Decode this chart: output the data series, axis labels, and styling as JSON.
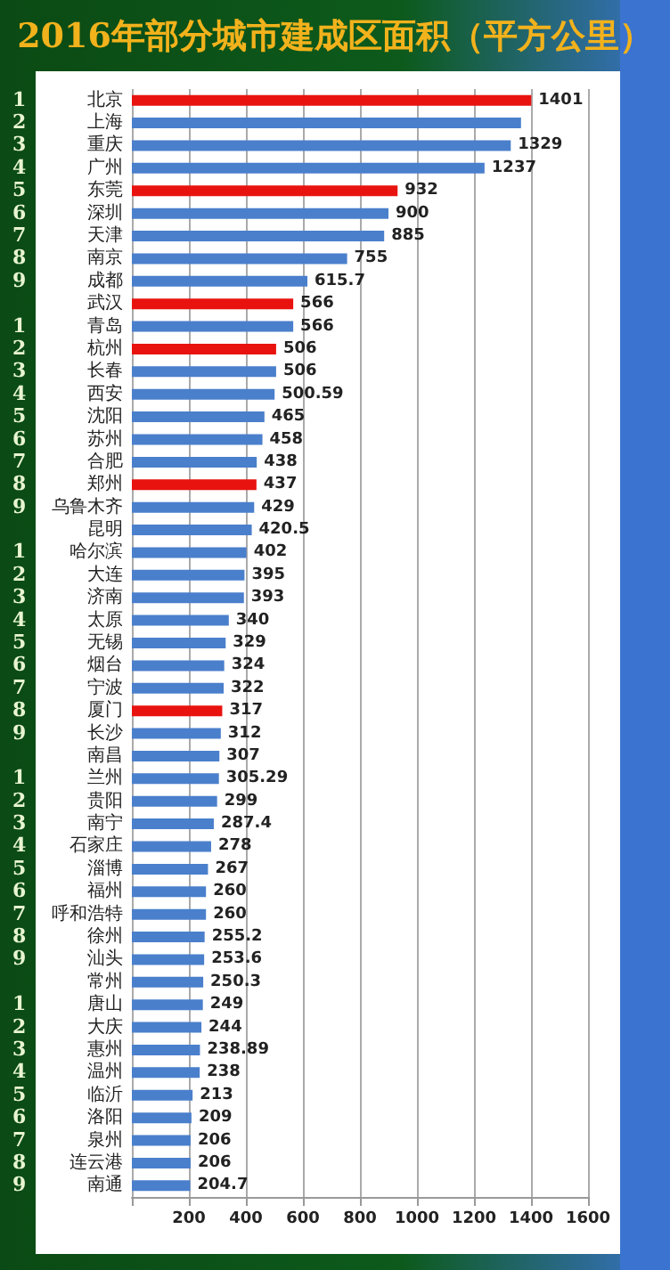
{
  "chart_data": {
    "type": "bar",
    "orientation": "horizontal",
    "title": "2016年部分城市建成区面积（平方公里）",
    "categories": [
      "北京",
      "上海",
      "重庆",
      "广州",
      "东莞",
      "深圳",
      "天津",
      "南京",
      "成都",
      "武汉",
      "青岛",
      "杭州",
      "长春",
      "西安",
      "沈阳",
      "苏州",
      "合肥",
      "郑州",
      "乌鲁木齐",
      "昆明",
      "哈尔滨",
      "大连",
      "济南",
      "太原",
      "无锡",
      "烟台",
      "宁波",
      "厦门",
      "长沙",
      "南昌",
      "兰州",
      "贵阳",
      "南宁",
      "石家庄",
      "淄博",
      "福州",
      "呼和浩特",
      "徐州",
      "汕头",
      "常州",
      "唐山",
      "大庆",
      "惠州",
      "温州",
      "临沂",
      "洛阳",
      "泉州",
      "连云港",
      "南通"
    ],
    "values": [
      1401,
      1365,
      1329,
      1237,
      932,
      900,
      885,
      755,
      615.7,
      566,
      566,
      506,
      506,
      500.59,
      465,
      458,
      438,
      437,
      429,
      420.5,
      402,
      395,
      393,
      340,
      329,
      324,
      322,
      317,
      312,
      307,
      305.29,
      299,
      287.4,
      278,
      267,
      260,
      260,
      255.2,
      253.6,
      250.3,
      249,
      244,
      238.89,
      238,
      213,
      209,
      206,
      206,
      204.7
    ],
    "colors": [
      "#e8130f",
      "#4a7fcc",
      "#4a7fcc",
      "#4a7fcc",
      "#e8130f",
      "#4a7fcc",
      "#4a7fcc",
      "#4a7fcc",
      "#4a7fcc",
      "#e8130f",
      "#4a7fcc",
      "#e8130f",
      "#4a7fcc",
      "#4a7fcc",
      "#4a7fcc",
      "#4a7fcc",
      "#4a7fcc",
      "#e8130f",
      "#4a7fcc",
      "#4a7fcc",
      "#4a7fcc",
      "#4a7fcc",
      "#4a7fcc",
      "#4a7fcc",
      "#4a7fcc",
      "#4a7fcc",
      "#4a7fcc",
      "#e8130f",
      "#4a7fcc",
      "#4a7fcc",
      "#4a7fcc",
      "#4a7fcc",
      "#4a7fcc",
      "#4a7fcc",
      "#4a7fcc",
      "#4a7fcc",
      "#4a7fcc",
      "#4a7fcc",
      "#4a7fcc",
      "#4a7fcc",
      "#4a7fcc",
      "#4a7fcc",
      "#4a7fcc",
      "#4a7fcc",
      "#4a7fcc",
      "#4a7fcc",
      "#4a7fcc",
      "#4a7fcc",
      "#4a7fcc"
    ],
    "value_labels": [
      "1401",
      null,
      "1329",
      "1237",
      "932",
      "900",
      "885",
      "755",
      "615.7",
      "566",
      "566",
      "506",
      "506",
      "500.59",
      "465",
      "458",
      "438",
      "437",
      "429",
      "420.5",
      "402",
      "395",
      "393",
      "340",
      "329",
      "324",
      "322",
      "317",
      "312",
      "307",
      "305.29",
      "299",
      "287.4",
      "278",
      "267",
      "260",
      "260",
      "255.2",
      "253.6",
      "250.3",
      "249",
      "244",
      "238.89",
      "238",
      "213",
      "209",
      "206",
      "206",
      "204.7"
    ],
    "xlim": [
      0,
      1600
    ],
    "xticks": [
      {
        "value": 0,
        "label": null
      },
      200,
      400,
      600,
      800,
      1000,
      1200,
      1400,
      1600
    ],
    "grid": "x",
    "annotations": [
      "1",
      "2",
      "3",
      "4",
      "5",
      "6",
      "7",
      "8",
      "9",
      "1",
      "2",
      "3",
      "4",
      "5",
      "6",
      "7",
      "8",
      "9",
      "1",
      "2",
      "3",
      "4",
      "5",
      "6",
      "7",
      "8",
      "9",
      "1",
      "2",
      "3",
      "4",
      "5",
      "6",
      "7",
      "8",
      "9",
      "1",
      "2",
      "3",
      "4",
      "5",
      "6",
      "7",
      "8",
      "9"
    ]
  }
}
